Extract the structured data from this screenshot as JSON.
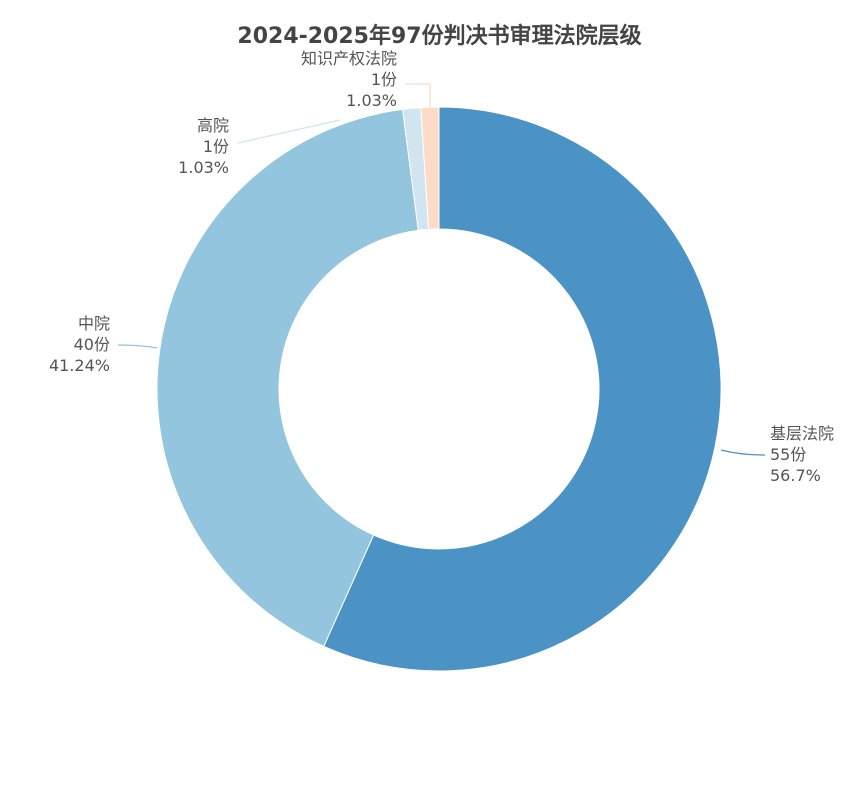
{
  "chart_data": {
    "type": "pie",
    "variant": "donut",
    "title": "2024-2025年97份判决书审理法院层级",
    "unit": "份",
    "slices": [
      {
        "name": "基层法院",
        "value": 55,
        "count_label": "55份",
        "percent_label": "56.7%",
        "color": "#4a93c4"
      },
      {
        "name": "中院",
        "value": 40,
        "count_label": "40份",
        "percent_label": "41.24%",
        "color": "#93c5de"
      },
      {
        "name": "高院",
        "value": 1,
        "count_label": "1份",
        "percent_label": "1.03%",
        "color": "#d1e5f0"
      },
      {
        "name": "知识产权法院",
        "value": 1,
        "count_label": "1份",
        "percent_label": "1.03%",
        "color": "#fddbc7"
      }
    ],
    "start_angle": "top",
    "direction": "clockwise",
    "legend": "none"
  }
}
